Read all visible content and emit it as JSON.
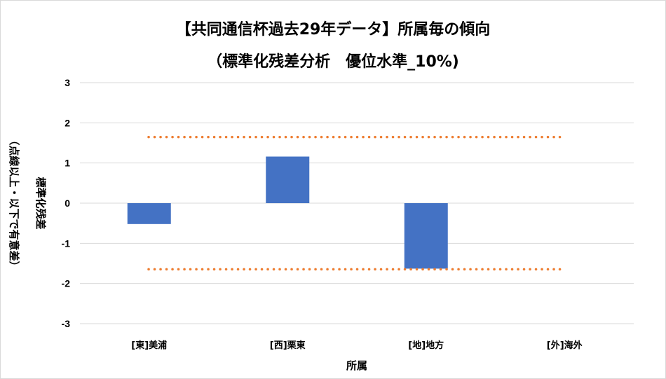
{
  "chart_data": {
    "type": "bar",
    "title": "【共同通信杯過去29年データ】所属毎の傾向",
    "subtitle": "（標準化残差分析　優位水準_10%)",
    "xlabel": "所属",
    "ylabel": "標準化残差",
    "ylabel_note": "（点線以上・以下で有意差）",
    "categories": [
      "[東]美浦",
      "[西]栗東",
      "[地]地方",
      "[外]海外"
    ],
    "values": [
      -0.52,
      1.16,
      -1.63,
      0
    ],
    "ylim": [
      -3,
      3
    ],
    "yticks": [
      3,
      2,
      1,
      0,
      -1,
      -2,
      -3
    ],
    "threshold_lines": [
      1.645,
      -1.645
    ],
    "bar_color": "#4472c4",
    "threshold_color": "#ed7d31",
    "grid": true
  }
}
